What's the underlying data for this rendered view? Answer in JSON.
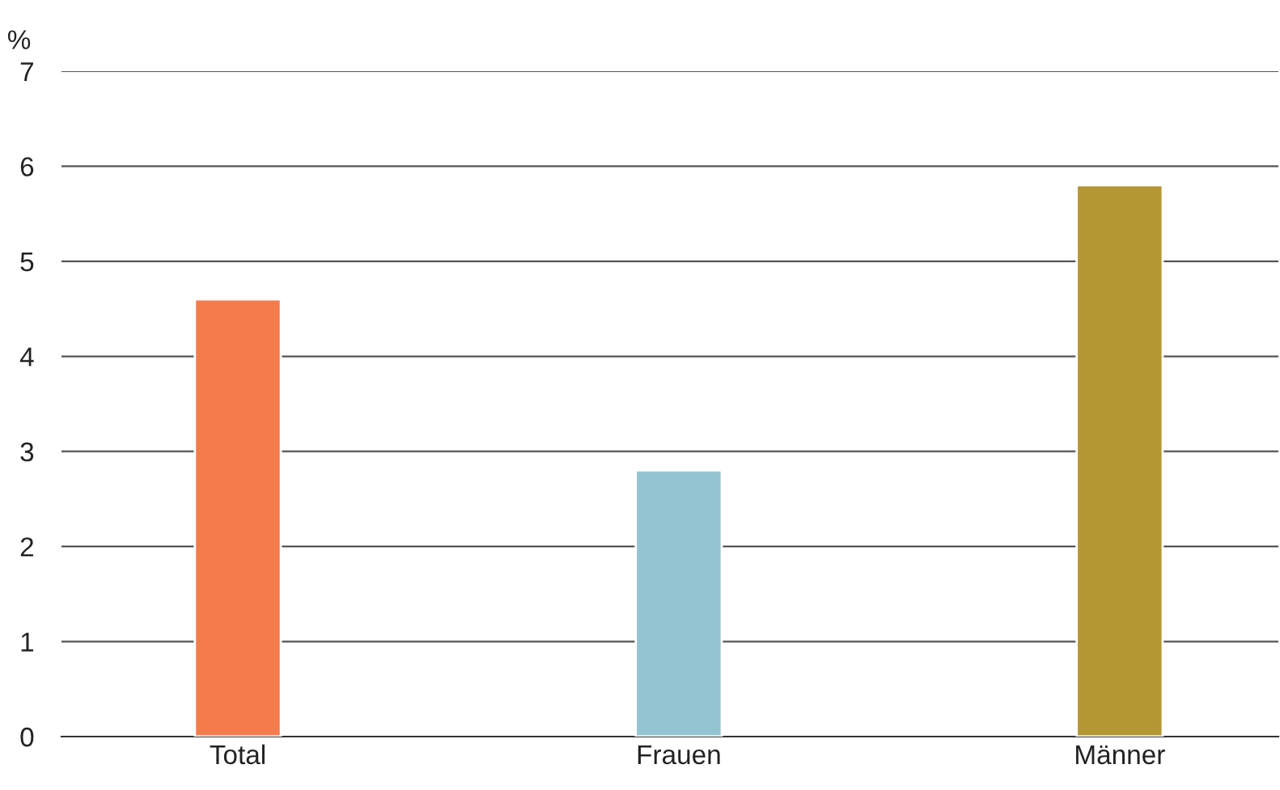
{
  "chart_data": {
    "type": "bar",
    "ylabel": "%",
    "categories": [
      "Total",
      "Frauen",
      "Männer"
    ],
    "values": [
      4.6,
      2.8,
      5.8
    ],
    "colors": [
      "#f47c4c",
      "#94c3d1",
      "#b49633"
    ],
    "ylim": [
      0,
      7
    ],
    "yticks": [
      0,
      1,
      2,
      3,
      4,
      5,
      6,
      7
    ],
    "grid": "y",
    "legend": false
  }
}
